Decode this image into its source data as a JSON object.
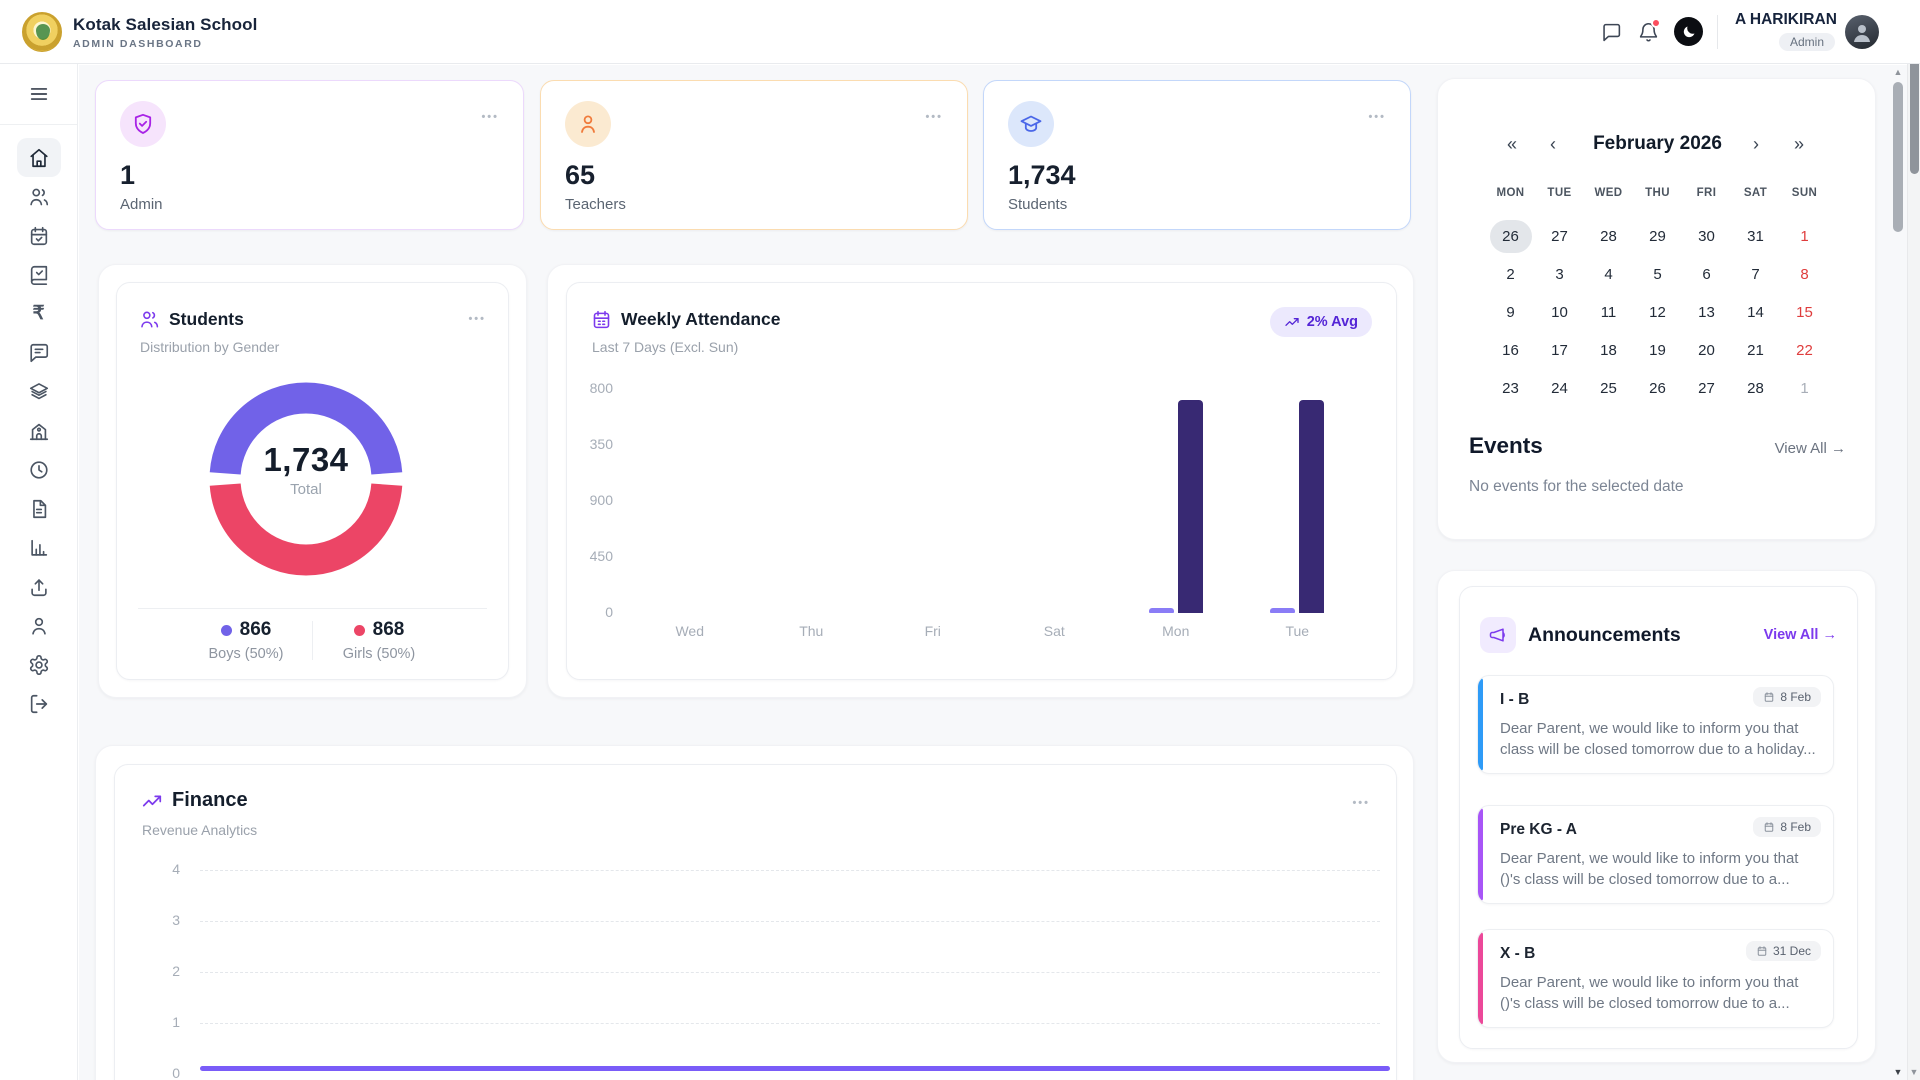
{
  "header": {
    "school_name": "Kotak Salesian School",
    "subtitle": "ADMIN DASHBOARD",
    "user_name": "A HARIKIRAN",
    "user_role": "Admin"
  },
  "sidebar": {
    "items": [
      {
        "icon": "home",
        "active": true
      },
      {
        "icon": "users"
      },
      {
        "icon": "calendar-check"
      },
      {
        "icon": "book-check"
      },
      {
        "icon": "rupee"
      },
      {
        "icon": "message"
      },
      {
        "icon": "layers"
      },
      {
        "icon": "school-building"
      },
      {
        "icon": "clock"
      },
      {
        "icon": "document"
      },
      {
        "icon": "bar-chart"
      },
      {
        "icon": "upload"
      },
      {
        "icon": "user"
      },
      {
        "icon": "settings"
      },
      {
        "icon": "logout"
      }
    ]
  },
  "stats": [
    {
      "value": "1",
      "label": "Admin",
      "icon": "shield-check"
    },
    {
      "value": "65",
      "label": "Teachers",
      "icon": "person"
    },
    {
      "value": "1,734",
      "label": "Students",
      "icon": "graduation-cap"
    }
  ],
  "students_card": {
    "title": "Students",
    "subtitle": "Distribution by Gender",
    "total": "1,734",
    "total_label": "Total",
    "legend": [
      {
        "value": "866",
        "label": "Boys (50%)"
      },
      {
        "value": "868",
        "label": "Girls (50%)"
      }
    ]
  },
  "attendance": {
    "title": "Weekly Attendance",
    "subtitle": "Last 7 Days (Excl. Sun)",
    "badge": "2% Avg",
    "y_ticks": [
      "800",
      "350",
      "900",
      "450",
      "0"
    ],
    "days": [
      "Wed",
      "Thu",
      "Fri",
      "Sat",
      "Mon",
      "Tue"
    ]
  },
  "finance": {
    "title": "Finance",
    "subtitle": "Revenue Analytics",
    "y_ticks": [
      "4",
      "3",
      "2",
      "1",
      "0"
    ]
  },
  "calendar": {
    "month": "February 2026",
    "nav": {
      "first": "«",
      "prev": "‹",
      "next": "›",
      "last": "»"
    },
    "weekdays": [
      "MON",
      "TUE",
      "WED",
      "THU",
      "FRI",
      "SAT",
      "SUN"
    ],
    "rows": [
      [
        {
          "d": "26",
          "s": "sel"
        },
        {
          "d": "27"
        },
        {
          "d": "28"
        },
        {
          "d": "29"
        },
        {
          "d": "30"
        },
        {
          "d": "31"
        },
        {
          "d": "1",
          "s": "sun"
        }
      ],
      [
        {
          "d": "2"
        },
        {
          "d": "3"
        },
        {
          "d": "4"
        },
        {
          "d": "5"
        },
        {
          "d": "6"
        },
        {
          "d": "7"
        },
        {
          "d": "8",
          "s": "sun"
        }
      ],
      [
        {
          "d": "9"
        },
        {
          "d": "10"
        },
        {
          "d": "11"
        },
        {
          "d": "12"
        },
        {
          "d": "13"
        },
        {
          "d": "14"
        },
        {
          "d": "15",
          "s": "sun"
        }
      ],
      [
        {
          "d": "16"
        },
        {
          "d": "17"
        },
        {
          "d": "18"
        },
        {
          "d": "19"
        },
        {
          "d": "20"
        },
        {
          "d": "21"
        },
        {
          "d": "22",
          "s": "sun"
        }
      ],
      [
        {
          "d": "23"
        },
        {
          "d": "24"
        },
        {
          "d": "25"
        },
        {
          "d": "26"
        },
        {
          "d": "27"
        },
        {
          "d": "28"
        },
        {
          "d": "1",
          "s": "mut"
        }
      ]
    ]
  },
  "events": {
    "title": "Events",
    "view_all": "View All →",
    "empty": "No events for the selected date"
  },
  "announcements": {
    "title": "Announcements",
    "view_all": "View All →",
    "items": [
      {
        "title": "I - B",
        "date": "8 Feb",
        "body": "Dear Parent, we would like to inform you that class will be closed tomorrow due to a holiday..."
      },
      {
        "title": "Pre KG - A",
        "date": "8 Feb",
        "body": "Dear Parent, we would like to inform you that ()'s class will be closed tomorrow due to a..."
      },
      {
        "title": "X - B",
        "date": "31 Dec",
        "body": "Dear Parent, we would like to inform you that ()'s class will be closed tomorrow due to a..."
      }
    ]
  },
  "ui": {
    "menu_dots": "•••"
  },
  "colors": {
    "accent_purple": "#7C3AED",
    "donut_boys": "#7162E8",
    "donut_girls": "#EC4566",
    "bar_dark": "#382973",
    "bar_light": "#8A7CF6",
    "finance_line": "#7A5CF8",
    "sunday_red": "#DF3D3D",
    "badge_bg": "#ECE9FD",
    "badge_text": "#5425D6",
    "announcement_accents": [
      "#2E9BF7",
      "#A855F7",
      "#EC4899"
    ],
    "stat_borders": [
      "#ECD9FC",
      "#FBDCB0",
      "#C3D7FA"
    ],
    "stat_icon_colors": [
      "#A823E6",
      "#F07B3C",
      "#4A67E8"
    ],
    "stat_icon_bgs": [
      "#F6E4FC",
      "#FBEAD1",
      "#DCE7FB"
    ]
  },
  "chart_data": [
    {
      "type": "pie",
      "subtype": "donut",
      "title": "Students - Distribution by Gender",
      "labels": [
        "Boys",
        "Girls"
      ],
      "values": [
        866,
        868
      ],
      "percent_labels": [
        "50%",
        "50%"
      ],
      "total": 1734,
      "center_label": "Total",
      "colors": [
        "#7162E8",
        "#EC4566"
      ],
      "legend_position": "bottom"
    },
    {
      "type": "bar",
      "title": "Weekly Attendance",
      "subtitle": "Last 7 Days (Excl. Sun)",
      "categories": [
        "Wed",
        "Thu",
        "Fri",
        "Sat",
        "Mon",
        "Tue"
      ],
      "series": [
        {
          "name": "secondary",
          "color": "#8A7CF6",
          "values": [
            0,
            0,
            0,
            0,
            35,
            35
          ]
        },
        {
          "name": "primary",
          "color": "#382973",
          "values": [
            0,
            0,
            0,
            0,
            1700,
            1700
          ]
        }
      ],
      "y_tick_labels_shown": [
        "800",
        "350",
        "900",
        "450",
        "0"
      ],
      "ylim": [
        0,
        1800
      ],
      "grid": false,
      "annotation": "2% Avg",
      "note": "bar values estimated from pixel heights"
    },
    {
      "type": "line",
      "title": "Finance - Revenue Analytics",
      "y_ticks": [
        4,
        3,
        2,
        1,
        0
      ],
      "ylim": [
        0,
        4
      ],
      "grid": "dashed",
      "x_labels_visible": false,
      "series": [
        {
          "name": "revenue",
          "color": "#7A5CF8",
          "values": [
            0,
            0,
            0,
            0,
            0,
            0,
            0
          ]
        }
      ]
    }
  ]
}
